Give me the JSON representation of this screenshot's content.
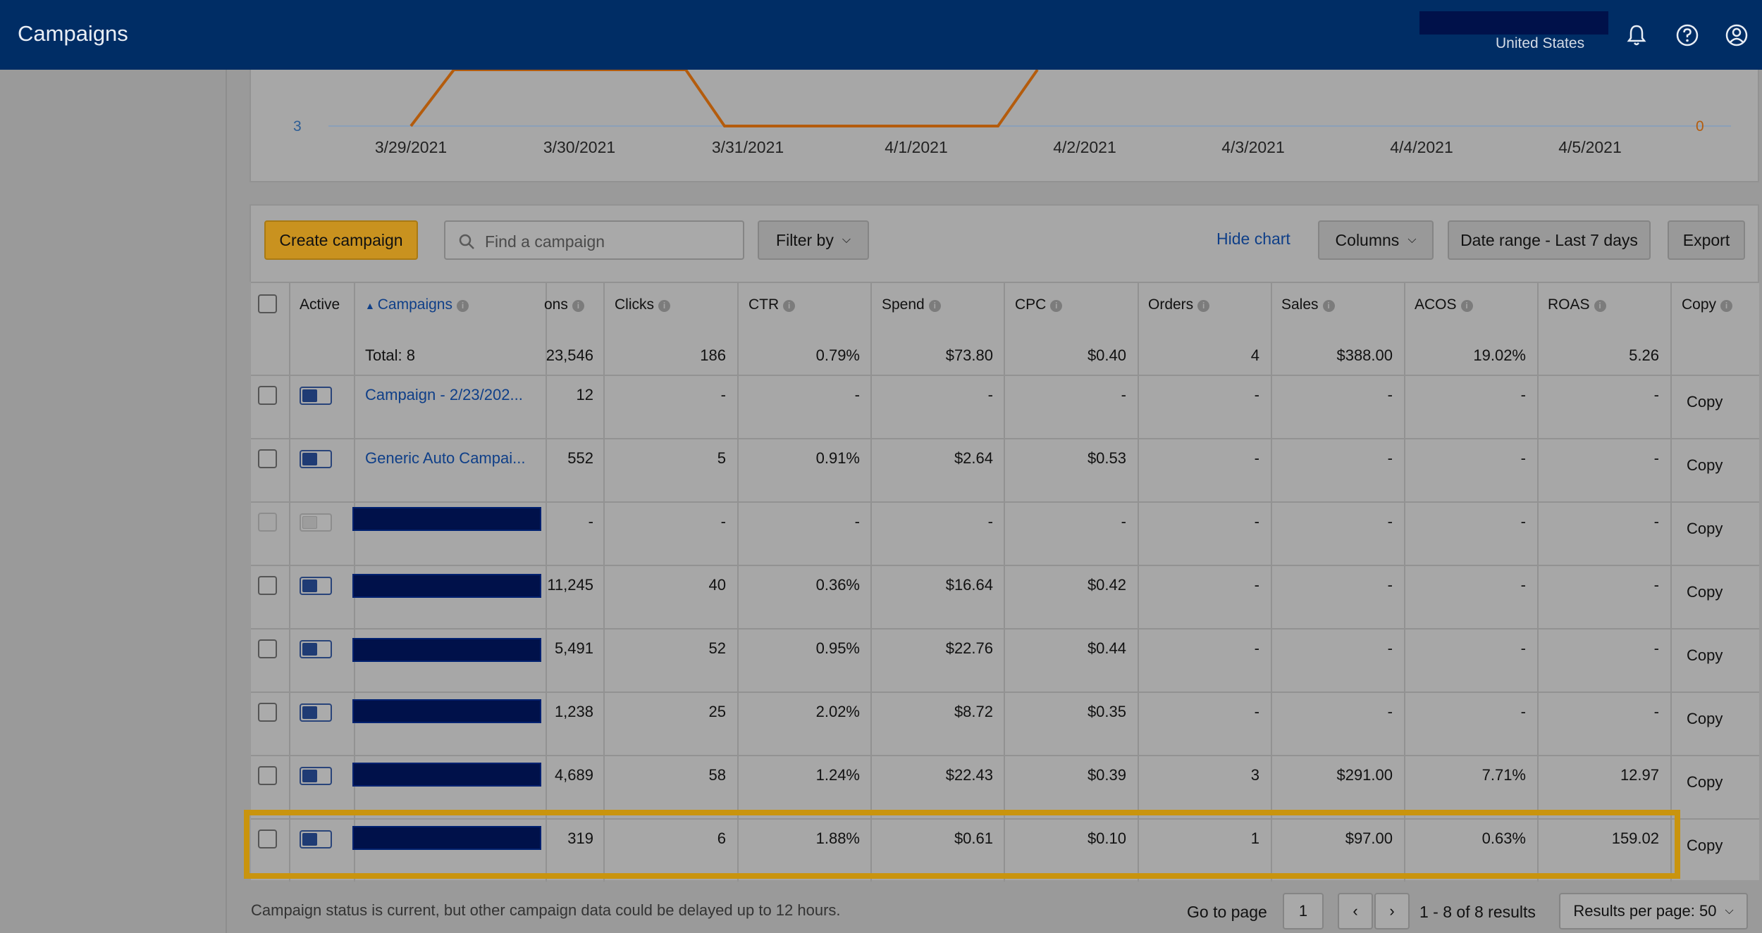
{
  "header": {
    "title": "Campaigns",
    "country": "United States",
    "icons": [
      "bell-icon",
      "help-icon",
      "account-icon"
    ]
  },
  "chart": {
    "left_axis_value": "3",
    "right_axis_value": "0",
    "dates": [
      "3/29/2021",
      "3/30/2021",
      "3/31/2021",
      "4/1/2021",
      "4/2/2021",
      "4/3/2021",
      "4/4/2021",
      "4/5/2021"
    ]
  },
  "toolbar": {
    "create_label": "Create campaign",
    "search_placeholder": "Find a campaign",
    "filter_label": "Filter by",
    "hide_chart_label": "Hide chart",
    "columns_label": "Columns",
    "date_range_label": "Date range - Last 7 days",
    "export_label": "Export"
  },
  "table": {
    "headers": {
      "active": "Active",
      "campaigns": "Campaigns",
      "impressions": "ons",
      "clicks": "Clicks",
      "ctr": "CTR",
      "spend": "Spend",
      "cpc": "CPC",
      "orders": "Orders",
      "sales": "Sales",
      "acos": "ACOS",
      "roas": "ROAS",
      "copy": "Copy"
    },
    "total": {
      "label": "Total: 8",
      "impressions": "23,546",
      "clicks": "186",
      "ctr": "0.79%",
      "spend": "$73.80",
      "cpc": "$0.40",
      "orders": "4",
      "sales": "$388.00",
      "acos": "19.02%",
      "roas": "5.26"
    },
    "rows": [
      {
        "name": "Campaign - 2/23/202...",
        "impressions": "12",
        "clicks": "-",
        "ctr": "-",
        "spend": "-",
        "cpc": "-",
        "orders": "-",
        "sales": "-",
        "acos": "-",
        "roas": "-",
        "copy": "Copy"
      },
      {
        "name": "Generic Auto Campai...",
        "impressions": "552",
        "clicks": "5",
        "ctr": "0.91%",
        "spend": "$2.64",
        "cpc": "$0.53",
        "orders": "-",
        "sales": "-",
        "acos": "-",
        "roas": "-",
        "copy": "Copy"
      },
      {
        "name": "",
        "impressions": "-",
        "clicks": "-",
        "ctr": "-",
        "spend": "-",
        "cpc": "-",
        "orders": "-",
        "sales": "-",
        "acos": "-",
        "roas": "-",
        "copy": "Copy"
      },
      {
        "name": "",
        "impressions": "11,245",
        "clicks": "40",
        "ctr": "0.36%",
        "spend": "$16.64",
        "cpc": "$0.42",
        "orders": "-",
        "sales": "-",
        "acos": "-",
        "roas": "-",
        "copy": "Copy"
      },
      {
        "name": "",
        "impressions": "5,491",
        "clicks": "52",
        "ctr": "0.95%",
        "spend": "$22.76",
        "cpc": "$0.44",
        "orders": "-",
        "sales": "-",
        "acos": "-",
        "roas": "-",
        "copy": "Copy"
      },
      {
        "name": "",
        "impressions": "1,238",
        "clicks": "25",
        "ctr": "2.02%",
        "spend": "$8.72",
        "cpc": "$0.35",
        "orders": "-",
        "sales": "-",
        "acos": "-",
        "roas": "-",
        "copy": "Copy"
      },
      {
        "name": "",
        "impressions": "4,689",
        "clicks": "58",
        "ctr": "1.24%",
        "spend": "$22.43",
        "cpc": "$0.39",
        "orders": "3",
        "sales": "$291.00",
        "acos": "7.71%",
        "roas": "12.97",
        "copy": "Copy"
      },
      {
        "name": "",
        "impressions": "319",
        "clicks": "6",
        "ctr": "1.88%",
        "spend": "$0.61",
        "cpc": "$0.10",
        "orders": "1",
        "sales": "$97.00",
        "acos": "0.63%",
        "roas": "159.02",
        "copy": "Copy"
      }
    ]
  },
  "footer": {
    "status_note": "Campaign status is current, but other campaign data could be delayed up to 12 hours.",
    "go_to_page_label": "Go to page",
    "page_value": "1",
    "results_label": "1 - 8 of 8 results",
    "per_page_label": "Results per page: 50"
  }
}
